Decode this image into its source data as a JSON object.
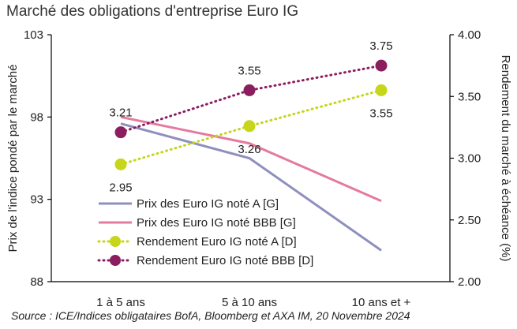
{
  "title": "Marché des obligations d'entreprise Euro IG",
  "source": "Source : ICE/Indices obligataires BofA, Bloomberg et AXA IM, 20 Novembre  2024",
  "colors": {
    "price_a": "#8f8fbf",
    "price_bbb": "#e57a9f",
    "yield_a": "#c5d61b",
    "yield_bbb": "#8b1e5e"
  },
  "chart_data": {
    "type": "line",
    "categories": [
      "1 à 5 ans",
      "5 à 10 ans",
      "10 ans et +"
    ],
    "y_left": {
      "label": "Prix de l'indice pondé par le marché",
      "ylim": [
        88,
        103
      ],
      "ticks": [
        "88",
        "93",
        "98",
        "103"
      ],
      "tick_values": [
        88,
        93,
        98,
        103
      ]
    },
    "y_right": {
      "label": "Rendement du marché à échéance (%)",
      "ylim": [
        2.0,
        4.0
      ],
      "ticks": [
        "2.00",
        "2.50",
        "3.00",
        "3.50",
        "4.00"
      ],
      "tick_values": [
        2.0,
        2.5,
        3.0,
        3.5,
        4.0
      ]
    },
    "series": [
      {
        "name": "Prix des Euro IG noté A [G]",
        "axis": "left",
        "style": "solid",
        "color_key": "price_a",
        "values": [
          97.6,
          95.5,
          89.9
        ]
      },
      {
        "name": "Prix des Euro IG noté BBB [G]",
        "axis": "left",
        "style": "solid",
        "color_key": "price_bbb",
        "values": [
          98.0,
          96.4,
          92.9
        ]
      },
      {
        "name": "Rendement Euro IG noté A [D]",
        "axis": "right",
        "style": "dotted",
        "color_key": "yield_a",
        "values": [
          2.95,
          3.26,
          3.55
        ],
        "labels": [
          "2.95",
          "3.26",
          "3.55"
        ]
      },
      {
        "name": "Rendement Euro IG noté BBB [D]",
        "axis": "right",
        "style": "dotted",
        "color_key": "yield_bbb",
        "values": [
          3.21,
          3.55,
          3.75
        ],
        "labels": [
          "3.21",
          "3.55",
          "3.75"
        ]
      }
    ],
    "grid": false,
    "legend_position": "bottom-left"
  }
}
